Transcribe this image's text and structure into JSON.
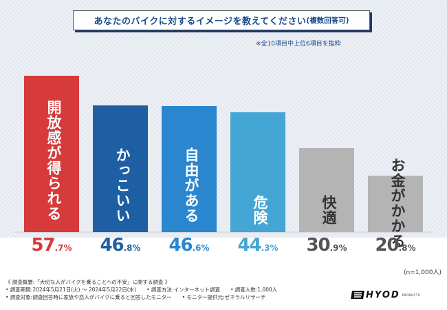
{
  "title": "あなたのバイクに対するイメージを教えてください",
  "title_suffix": "(複数回答可)",
  "note": "※全10項目中上位6項目を抜粋",
  "n_note": "(n=1,000人)",
  "footer": [
    "《 調査概要:「大切な人がバイクを乗ることへの不安」に関する調査 》",
    "• 調査期間:2024年5月21日(火) ～ 2024年5月22日(水)　　• 調査方法:インターネット調査　　• 調査人数:1,000人",
    "• 調査対象:調査回答時に家族や恋人がバイクに乗ると回答したモニター　　• モニター提供元:ゼネラルリサーチ"
  ],
  "logo": "HYOD",
  "logo_sub": "PRODUCTS",
  "chart_data": {
    "type": "bar",
    "title": "あなたのバイクに対するイメージを教えてください(複数回答可)",
    "categories": [
      "開放感が得られる",
      "かっこいい",
      "自由がある",
      "危険",
      "快適",
      "お金がかかる"
    ],
    "values": [
      57.7,
      46.8,
      46.6,
      44.3,
      30.9,
      20.8
    ],
    "value_int": [
      "57",
      "46",
      "46",
      "44",
      "30",
      "20"
    ],
    "value_dec": [
      ".7%",
      ".8%",
      ".6%",
      ".3%",
      ".9%",
      ".8%"
    ],
    "ylim": [
      0,
      60
    ],
    "colors": [
      "#d63a3a",
      "#1e5fa3",
      "#2a86cf",
      "#44a6d4",
      "#b4b4b4",
      "#b4b4b4"
    ],
    "value_colors": [
      "#d63a3a",
      "#1e5fa3",
      "#2a86cf",
      "#44a6d4",
      "#555555",
      "#555555"
    ],
    "label_colors": [
      "#ffffff",
      "#ffffff",
      "#ffffff",
      "#ffffff",
      "#333333",
      "#333333"
    ],
    "unit": "%",
    "xlabel": "",
    "ylabel": ""
  }
}
